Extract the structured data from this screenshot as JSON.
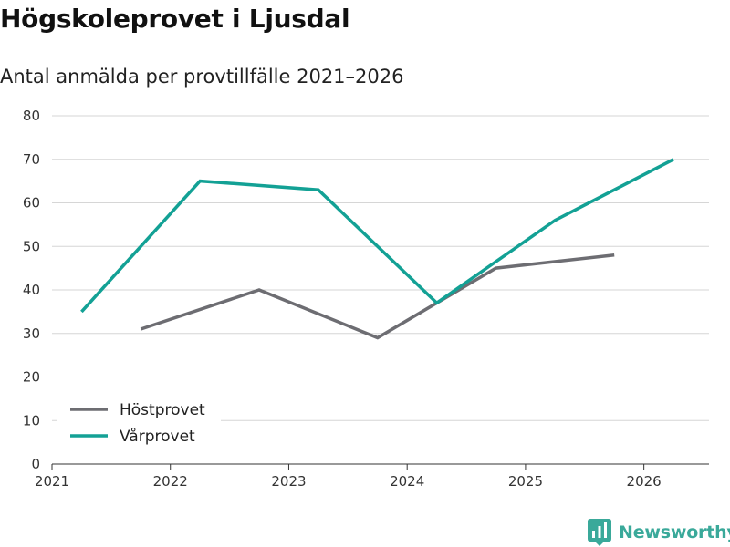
{
  "title": "Högskoleprovet i Ljusdal",
  "subtitle": "Antal anmälda per provtillfälle 2021–2026",
  "brand": {
    "name": "Newsworthy",
    "color": "#3aa99a"
  },
  "chart_data": {
    "type": "line",
    "title": "Högskoleprovet i Ljusdal",
    "subtitle": "Antal anmälda per provtillfälle 2021–2026",
    "xlabel": "",
    "ylabel": "",
    "xlim": [
      2021,
      2026.55
    ],
    "ylim": [
      0,
      80
    ],
    "x_ticks": [
      2021,
      2022,
      2023,
      2024,
      2025,
      2026
    ],
    "x_tick_labels": [
      "2021",
      "2022",
      "2023",
      "2024",
      "2025",
      "2026"
    ],
    "y_ticks": [
      0,
      10,
      20,
      30,
      40,
      50,
      60,
      70,
      80
    ],
    "y_tick_labels": [
      "0",
      "10",
      "20",
      "30",
      "40",
      "50",
      "60",
      "70",
      "80"
    ],
    "grid": true,
    "legend_position": "bottom-left",
    "series": [
      {
        "name": "Höstprovet",
        "color": "#6d6d72",
        "x": [
          2021.75,
          2022.75,
          2023.75,
          2024.75,
          2025.75
        ],
        "values": [
          31,
          40,
          29,
          45,
          48
        ]
      },
      {
        "name": "Vårprovet",
        "color": "#13a195",
        "x": [
          2021.25,
          2022.25,
          2023.25,
          2024.25,
          2025.25,
          2026.25
        ],
        "values": [
          35,
          65,
          63,
          37,
          56,
          70
        ]
      }
    ]
  }
}
